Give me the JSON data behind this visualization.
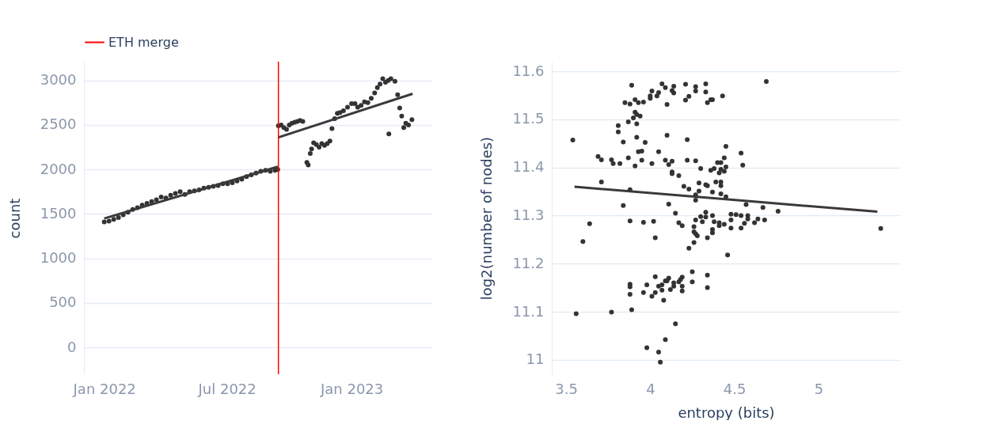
{
  "chart_data": [
    {
      "type": "scatter",
      "ylabel": "count",
      "xlim": [
        "2021-12-02",
        "2023-04-30"
      ],
      "ylim": [
        -300,
        3210
      ],
      "xticks": [
        {
          "value": "2022-01-01",
          "label": "Jan 2022"
        },
        {
          "value": "2022-07-01",
          "label": "Jul 2022"
        },
        {
          "value": "2023-01-01",
          "label": "Jan 2023"
        }
      ],
      "yticks": [
        0,
        500,
        1000,
        1500,
        2000,
        2500,
        3000
      ],
      "grid": "y",
      "legend": "top left",
      "marker": "circle",
      "ref_lines": [
        {
          "axis": "x",
          "value": "2022-09-15",
          "label": "ETH merge",
          "color": "#ff0000"
        }
      ],
      "series": [
        {
          "type": "scatter",
          "color": "#333333",
          "x": [
            "2022-01-01",
            "2022-01-08",
            "2022-01-15",
            "2022-01-22",
            "2022-01-29",
            "2022-02-05",
            "2022-02-12",
            "2022-02-19",
            "2022-02-26",
            "2022-03-05",
            "2022-03-12",
            "2022-03-19",
            "2022-03-26",
            "2022-04-02",
            "2022-04-09",
            "2022-04-16",
            "2022-04-23",
            "2022-04-30",
            "2022-05-07",
            "2022-05-14",
            "2022-05-21",
            "2022-05-28",
            "2022-06-04",
            "2022-06-11",
            "2022-06-18",
            "2022-06-25",
            "2022-07-02",
            "2022-07-09",
            "2022-07-16",
            "2022-07-23",
            "2022-07-30",
            "2022-08-06",
            "2022-08-13",
            "2022-08-20",
            "2022-08-27",
            "2022-09-03",
            "2022-09-10",
            "2022-09-14",
            "2022-09-15",
            "2022-09-19",
            "2022-09-23",
            "2022-09-27",
            "2022-10-01",
            "2022-10-05",
            "2022-10-09",
            "2022-10-13",
            "2022-10-17",
            "2022-10-21",
            "2022-10-27",
            "2022-10-29",
            "2022-11-01",
            "2022-11-03",
            "2022-11-06",
            "2022-11-10",
            "2022-11-14",
            "2022-11-18",
            "2022-11-22",
            "2022-11-26",
            "2022-11-30",
            "2022-12-03",
            "2022-12-07",
            "2022-12-11",
            "2022-12-15",
            "2022-12-20",
            "2022-12-26",
            "2023-01-01",
            "2023-01-06",
            "2023-01-10",
            "2023-01-15",
            "2023-01-20",
            "2023-01-25",
            "2023-01-30",
            "2023-02-04",
            "2023-02-08",
            "2023-02-12",
            "2023-02-16",
            "2023-02-20",
            "2023-02-24",
            "2023-02-25",
            "2023-02-28",
            "2023-03-06",
            "2023-03-10",
            "2023-03-13",
            "2023-03-16",
            "2023-03-19",
            "2023-03-22",
            "2023-03-26",
            "2023-03-31"
          ],
          "values": [
            1410,
            1420,
            1440,
            1460,
            1490,
            1520,
            1550,
            1570,
            1600,
            1620,
            1640,
            1660,
            1690,
            1680,
            1710,
            1730,
            1750,
            1720,
            1750,
            1760,
            1770,
            1790,
            1800,
            1810,
            1820,
            1840,
            1840,
            1850,
            1870,
            1890,
            1920,
            1940,
            1960,
            1980,
            1990,
            1980,
            1990,
            2000,
            2490,
            2500,
            2470,
            2450,
            2500,
            2520,
            2530,
            2540,
            2550,
            2540,
            2080,
            2050,
            2180,
            2230,
            2300,
            2280,
            2250,
            2290,
            2270,
            2290,
            2320,
            2460,
            2570,
            2630,
            2640,
            2660,
            2700,
            2740,
            2740,
            2700,
            2720,
            2760,
            2750,
            2800,
            2860,
            2920,
            2960,
            3020,
            2980,
            3000,
            2400,
            3020,
            2990,
            2840,
            2690,
            2600,
            2470,
            2520,
            2500,
            2560
          ]
        },
        {
          "type": "line",
          "marker": "none",
          "color": "#3a3a3a",
          "x": [
            "2022-01-01",
            "2022-09-14"
          ],
          "values": [
            1450,
            2030
          ]
        },
        {
          "type": "line",
          "marker": "none",
          "color": "#3a3a3a",
          "x": [
            "2022-09-15",
            "2023-04-01"
          ],
          "values": [
            2360,
            2850
          ]
        }
      ]
    },
    {
      "type": "scatter",
      "xlabel": "entropy (bits)",
      "ylabel": "log2(number of nodes)",
      "xlim": [
        3.415,
        5.485
      ],
      "ylim": [
        10.97,
        11.62
      ],
      "xticks": [
        3.5,
        4,
        4.5,
        5
      ],
      "yticks": [
        11,
        11.1,
        11.2,
        11.3,
        11.4,
        11.5,
        11.6
      ],
      "grid": "y",
      "marker": "circle",
      "series": [
        {
          "type": "scatter",
          "color": "#333333",
          "x": [
            3.54,
            3.89,
            3.69,
            3.71,
            3.71,
            3.77,
            3.78,
            3.82,
            3.81,
            3.81,
            3.84,
            3.87,
            3.88,
            3.84,
            3.85,
            3.88,
            3.91,
            3.93,
            3.96,
            3.87,
            3.9,
            3.91,
            3.92,
            3.94,
            3.92,
            3.92,
            3.93,
            3.95,
            3.91,
            3.95,
            3.97,
            4.0,
            4.0,
            4.01,
            4.04,
            4.05,
            4.01,
            4.05,
            4.07,
            4.09,
            4.1,
            4.1,
            4.09,
            4.11,
            4.13,
            4.13,
            4.14,
            4.14,
            4.13,
            4.13,
            4.17,
            4.21,
            4.23,
            4.21,
            4.27,
            4.27,
            4.22,
            4.22,
            4.27,
            4.2,
            4.23,
            4.11,
            4.3,
            4.29,
            4.33,
            4.33,
            4.34,
            4.36,
            4.37,
            4.33,
            4.34,
            4.36,
            4.37,
            4.38,
            4.39,
            4.42,
            4.42,
            4.4,
            4.42,
            4.41,
            4.42,
            4.44,
            4.44,
            4.45,
            4.45,
            4.43,
            4.54,
            4.55,
            4.69,
            4.27,
            4.27,
            4.29,
            4.42,
            4.45,
            4.57,
            4.67,
            4.76,
            3.88,
            3.96,
            4.02,
            4.03,
            3.64,
            3.6,
            4.15,
            4.17,
            4.19,
            4.23,
            4.26,
            4.27,
            4.28,
            4.26,
            4.26,
            4.27,
            4.31,
            4.34,
            4.37,
            4.37,
            4.38,
            4.41,
            4.41,
            4.44,
            4.48,
            4.46,
            4.48,
            4.54,
            4.56,
            4.58,
            4.62,
            4.64,
            4.68,
            4.58,
            4.51,
            4.54,
            4.48,
            4.37,
            4.33,
            4.3,
            4.33,
            5.37,
            3.56,
            3.77,
            3.89,
            3.88,
            3.88,
            3.88,
            3.98,
            3.96,
            4.01,
            4.03,
            4.03,
            4.05,
            4.07,
            4.07,
            4.08,
            4.09,
            4.1,
            4.11,
            4.12,
            4.14,
            4.14,
            4.17,
            4.18,
            4.19,
            4.19,
            4.19,
            4.25,
            4.25,
            4.34,
            4.34,
            4.15,
            4.09,
            3.98,
            4.05,
            4.06
          ],
          "values": [
            11.457,
            11.571,
            11.423,
            11.416,
            11.37,
            11.416,
            11.408,
            11.408,
            11.487,
            11.474,
            11.453,
            11.42,
            11.354,
            11.321,
            11.535,
            11.532,
            11.541,
            11.535,
            11.536,
            11.495,
            11.503,
            11.515,
            11.51,
            11.507,
            11.491,
            11.463,
            11.433,
            11.434,
            11.403,
            11.415,
            11.452,
            11.544,
            11.549,
            11.559,
            11.549,
            11.556,
            11.408,
            11.433,
            11.574,
            11.566,
            11.531,
            11.467,
            11.415,
            11.406,
            11.413,
            11.56,
            11.569,
            11.555,
            11.391,
            11.387,
            11.383,
            11.54,
            11.548,
            11.573,
            11.568,
            11.559,
            11.458,
            11.415,
            11.414,
            11.361,
            11.355,
            11.324,
            11.398,
            11.368,
            11.574,
            11.557,
            11.535,
            11.541,
            11.541,
            11.364,
            11.362,
            11.394,
            11.349,
            11.398,
            11.37,
            11.37,
            11.362,
            11.41,
            11.41,
            11.389,
            11.396,
            11.392,
            11.42,
            11.401,
            11.444,
            11.549,
            11.43,
            11.405,
            11.579,
            11.343,
            11.332,
            11.351,
            11.345,
            11.339,
            11.323,
            11.317,
            11.309,
            11.289,
            11.286,
            11.288,
            11.254,
            11.283,
            11.246,
            11.305,
            11.285,
            11.279,
            11.232,
            11.266,
            11.262,
            11.258,
            11.277,
            11.244,
            11.291,
            11.287,
            11.254,
            11.264,
            11.271,
            11.287,
            11.285,
            11.279,
            11.282,
            11.274,
            11.218,
            11.291,
            11.274,
            11.284,
            11.293,
            11.285,
            11.293,
            11.291,
            11.3,
            11.302,
            11.3,
            11.303,
            11.3,
            11.297,
            11.298,
            11.307,
            11.273,
            11.096,
            11.099,
            11.104,
            11.157,
            11.152,
            11.136,
            11.156,
            11.14,
            11.132,
            11.173,
            11.14,
            11.153,
            11.156,
            11.145,
            11.124,
            11.164,
            11.164,
            11.17,
            11.146,
            11.16,
            11.153,
            11.162,
            11.167,
            11.172,
            11.153,
            11.143,
            11.162,
            11.183,
            11.176,
            11.15,
            11.075,
            11.042,
            11.025,
            11.016,
            10.995
          ]
        },
        {
          "type": "line",
          "marker": "none",
          "color": "#3a3a3a",
          "x": [
            3.55,
            5.35
          ],
          "values": [
            11.36,
            11.308
          ]
        }
      ]
    }
  ]
}
